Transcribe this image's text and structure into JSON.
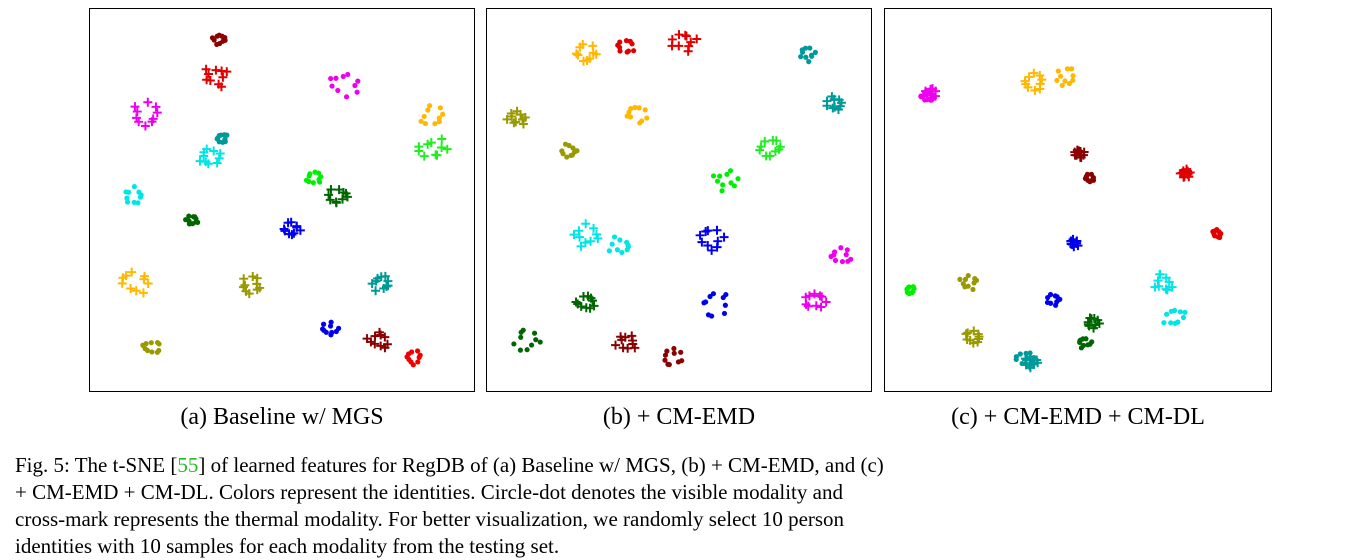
{
  "figure": {
    "panels": [
      {
        "id": "a",
        "caption": "(a) Baseline w/ MGS"
      },
      {
        "id": "b",
        "caption": "(b) + CM-EMD"
      },
      {
        "id": "c",
        "caption": "(c) + CM-EMD + CM-DL"
      }
    ],
    "caption": {
      "prefix": "Fig. 5: The t-SNE [",
      "ref": "55",
      "rest": "] of learned features for RegDB of (a) Baseline w/ MGS, (b) + CM-EMD, and (c) + CM-EMD + CM-DL. Colors represent the identities. Circle-dot denotes the visible modality and cross-mark represents the thermal modality. For better visualization, we randomly select 10 person identities with 10 samples for each modality from the testing set.",
      "ref_color": "#22bb22"
    }
  },
  "chart_data": [
    {
      "type": "scatter",
      "markers": {
        "visible": "dot",
        "thermal": "cross"
      },
      "clusters": [
        {
          "color": "#8b0000",
          "marker": "dot",
          "center": [
            130,
            30
          ],
          "spread": 8
        },
        {
          "color": "#e00000",
          "marker": "cross",
          "center": [
            127,
            68
          ],
          "spread": 14
        },
        {
          "color": "#ee00ee",
          "marker": "dot",
          "center": [
            255,
            75
          ],
          "spread": 18
        },
        {
          "color": "#ee00ee",
          "marker": "cross",
          "center": [
            55,
            106
          ],
          "spread": 16
        },
        {
          "color": "#ffb700",
          "marker": "dot",
          "center": [
            345,
            108
          ],
          "spread": 14
        },
        {
          "color": "#20ee20",
          "marker": "cross",
          "center": [
            345,
            140
          ],
          "spread": 16
        },
        {
          "color": "#009999",
          "marker": "dot",
          "center": [
            132,
            130
          ],
          "spread": 8
        },
        {
          "color": "#00e5e5",
          "marker": "cross",
          "center": [
            120,
            148
          ],
          "spread": 12
        },
        {
          "color": "#00ee00",
          "marker": "dot",
          "center": [
            225,
            170
          ],
          "spread": 8
        },
        {
          "color": "#00e5e5",
          "marker": "dot",
          "center": [
            45,
            188
          ],
          "spread": 12
        },
        {
          "color": "#006600",
          "marker": "cross",
          "center": [
            250,
            188
          ],
          "spread": 12
        },
        {
          "color": "#006600",
          "marker": "dot",
          "center": [
            103,
            212
          ],
          "spread": 8
        },
        {
          "color": "#0000ee",
          "marker": "cross",
          "center": [
            203,
            222
          ],
          "spread": 10
        },
        {
          "color": "#ffb700",
          "marker": "cross",
          "center": [
            45,
            275
          ],
          "spread": 16
        },
        {
          "color": "#999900",
          "marker": "cross",
          "center": [
            162,
            278
          ],
          "spread": 12
        },
        {
          "color": "#009999",
          "marker": "cross",
          "center": [
            293,
            275
          ],
          "spread": 12
        },
        {
          "color": "#0000ee",
          "marker": "dot",
          "center": [
            240,
            322
          ],
          "spread": 10
        },
        {
          "color": "#8b0000",
          "marker": "cross",
          "center": [
            290,
            333
          ],
          "spread": 12
        },
        {
          "color": "#ee0000",
          "marker": "dot",
          "center": [
            325,
            350
          ],
          "spread": 10
        },
        {
          "color": "#999900",
          "marker": "dot",
          "center": [
            62,
            340
          ],
          "spread": 10
        }
      ]
    },
    {
      "type": "scatter",
      "markers": {
        "visible": "dot",
        "thermal": "cross"
      },
      "clusters": [
        {
          "color": "#ffb700",
          "marker": "cross",
          "center": [
            100,
            45
          ],
          "spread": 14
        },
        {
          "color": "#e00000",
          "marker": "dot",
          "center": [
            140,
            38
          ],
          "spread": 10
        },
        {
          "color": "#e00000",
          "marker": "cross",
          "center": [
            198,
            32
          ],
          "spread": 14
        },
        {
          "color": "#009999",
          "marker": "dot",
          "center": [
            322,
            45
          ],
          "spread": 10
        },
        {
          "color": "#009999",
          "marker": "cross",
          "center": [
            350,
            95
          ],
          "spread": 10
        },
        {
          "color": "#999900",
          "marker": "cross",
          "center": [
            30,
            110
          ],
          "spread": 10
        },
        {
          "color": "#ffb700",
          "marker": "dot",
          "center": [
            150,
            105
          ],
          "spread": 14
        },
        {
          "color": "#999900",
          "marker": "dot",
          "center": [
            83,
            143
          ],
          "spread": 10
        },
        {
          "color": "#20ee20",
          "marker": "cross",
          "center": [
            285,
            140
          ],
          "spread": 12
        },
        {
          "color": "#00ee00",
          "marker": "dot",
          "center": [
            240,
            172
          ],
          "spread": 14
        },
        {
          "color": "#00e5e5",
          "marker": "cross",
          "center": [
            100,
            228
          ],
          "spread": 16
        },
        {
          "color": "#00e5e5",
          "marker": "dot",
          "center": [
            135,
            238
          ],
          "spread": 14
        },
        {
          "color": "#0000ee",
          "marker": "cross",
          "center": [
            225,
            232
          ],
          "spread": 14
        },
        {
          "color": "#ee00ee",
          "marker": "dot",
          "center": [
            355,
            248
          ],
          "spread": 12
        },
        {
          "color": "#006600",
          "marker": "cross",
          "center": [
            100,
            295
          ],
          "spread": 12
        },
        {
          "color": "#0000ee",
          "marker": "dot",
          "center": [
            228,
            295
          ],
          "spread": 18
        },
        {
          "color": "#ee00ee",
          "marker": "cross",
          "center": [
            330,
            293
          ],
          "spread": 14
        },
        {
          "color": "#006600",
          "marker": "dot",
          "center": [
            40,
            333
          ],
          "spread": 14
        },
        {
          "color": "#8b0000",
          "marker": "cross",
          "center": [
            140,
            335
          ],
          "spread": 12
        },
        {
          "color": "#8b0000",
          "marker": "dot",
          "center": [
            185,
            350
          ],
          "spread": 12
        }
      ]
    },
    {
      "type": "scatter",
      "markers": {
        "visible": "dot",
        "thermal": "cross"
      },
      "clusters": [
        {
          "color": "#ee00ee",
          "marker": "dot",
          "center": [
            42,
            88
          ],
          "spread": 7
        },
        {
          "color": "#ee00ee",
          "marker": "cross",
          "center": [
            45,
            85
          ],
          "spread": 7
        },
        {
          "color": "#ffb700",
          "marker": "cross",
          "center": [
            148,
            75
          ],
          "spread": 14
        },
        {
          "color": "#ffb700",
          "marker": "dot",
          "center": [
            182,
            68
          ],
          "spread": 12
        },
        {
          "color": "#8b0000",
          "marker": "cross",
          "center": [
            195,
            145
          ],
          "spread": 6
        },
        {
          "color": "#8b0000",
          "marker": "dot",
          "center": [
            205,
            170
          ],
          "spread": 6
        },
        {
          "color": "#e00000",
          "marker": "cross",
          "center": [
            302,
            165
          ],
          "spread": 6
        },
        {
          "color": "#e00000",
          "marker": "dot",
          "center": [
            334,
            226
          ],
          "spread": 6
        },
        {
          "color": "#0000ee",
          "marker": "cross",
          "center": [
            190,
            235
          ],
          "spread": 6
        },
        {
          "color": "#0000ee",
          "marker": "dot",
          "center": [
            170,
            292
          ],
          "spread": 8
        },
        {
          "color": "#00ee00",
          "marker": "dot",
          "center": [
            25,
            282
          ],
          "spread": 6
        },
        {
          "color": "#999900",
          "marker": "dot",
          "center": [
            84,
            275
          ],
          "spread": 10
        },
        {
          "color": "#999900",
          "marker": "cross",
          "center": [
            90,
            330
          ],
          "spread": 10
        },
        {
          "color": "#009999",
          "marker": "dot",
          "center": [
            140,
            352
          ],
          "spread": 10
        },
        {
          "color": "#009999",
          "marker": "cross",
          "center": [
            147,
            355
          ],
          "spread": 8
        },
        {
          "color": "#006600",
          "marker": "cross",
          "center": [
            208,
            315
          ],
          "spread": 8
        },
        {
          "color": "#006600",
          "marker": "dot",
          "center": [
            200,
            335
          ],
          "spread": 8
        },
        {
          "color": "#00e5e5",
          "marker": "cross",
          "center": [
            280,
            275
          ],
          "spread": 12
        },
        {
          "color": "#00e5e5",
          "marker": "dot",
          "center": [
            292,
            310
          ],
          "spread": 14
        }
      ]
    }
  ]
}
